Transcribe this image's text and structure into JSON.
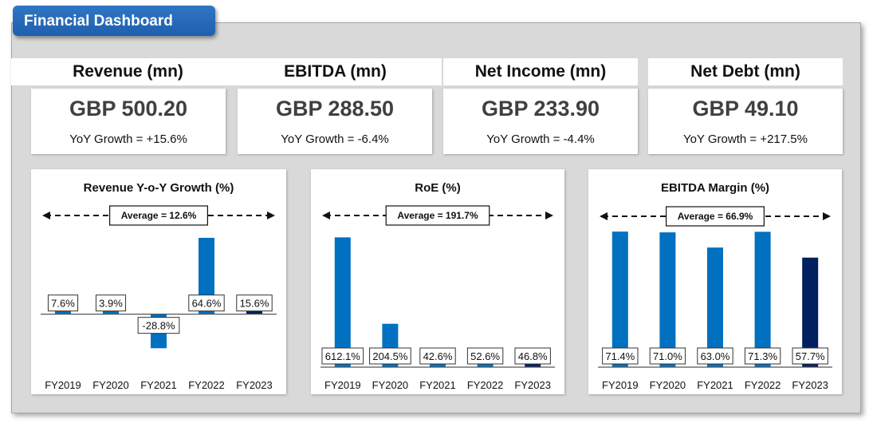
{
  "dashboard": {
    "title": "Financial Dashboard"
  },
  "kpis": [
    {
      "title": "Revenue (mn)",
      "value": "GBP 500.20",
      "yoy": "YoY Growth = +15.6%"
    },
    {
      "title": "EBITDA (mn)",
      "value": "GBP 288.50",
      "yoy": "YoY Growth = -6.4%"
    },
    {
      "title": "Net Income (mn)",
      "value": "GBP 233.90",
      "yoy": "YoY Growth = -4.4%"
    },
    {
      "title": "Net Debt (mn)",
      "value": "GBP 49.10",
      "yoy": "YoY Growth = +217.5%"
    }
  ],
  "colors": {
    "bar": "#0070c0",
    "bar_last": "#002060",
    "title_tab": "#2a6ebd",
    "panel": "#d9d9d9"
  },
  "chart_data": [
    {
      "type": "bar",
      "title": "Revenue Y-o-Y Growth (%)",
      "categories": [
        "FY2019",
        "FY2020",
        "FY2021",
        "FY2022",
        "FY2023"
      ],
      "values": [
        7.6,
        3.9,
        -28.8,
        64.6,
        15.6
      ],
      "value_labels": [
        "7.6%",
        "3.9%",
        "-28.8%",
        "64.6%",
        "15.6%"
      ],
      "average_label": "Average = 12.6%",
      "ylim": [
        -34,
        70
      ],
      "grid": false
    },
    {
      "type": "bar",
      "title": "RoE (%)",
      "categories": [
        "FY2019",
        "FY2020",
        "FY2021",
        "FY2022",
        "FY2023"
      ],
      "values": [
        612.1,
        204.5,
        42.6,
        52.6,
        46.8
      ],
      "value_labels": [
        "612.1%",
        "204.5%",
        "42.6%",
        "52.6%",
        "46.8%"
      ],
      "average_label": "Average = 191.7%",
      "ylim": [
        0,
        640
      ],
      "grid": false
    },
    {
      "type": "bar",
      "title": "EBITDA Margin (%)",
      "categories": [
        "FY2019",
        "FY2020",
        "FY2021",
        "FY2022",
        "FY2023"
      ],
      "values": [
        71.4,
        71.0,
        63.0,
        71.3,
        57.7
      ],
      "value_labels": [
        "71.4%",
        "71.0%",
        "63.0%",
        "71.3%",
        "57.7%"
      ],
      "average_label": "Average = 66.9%",
      "ylim": [
        0,
        74
      ],
      "grid": false
    }
  ]
}
